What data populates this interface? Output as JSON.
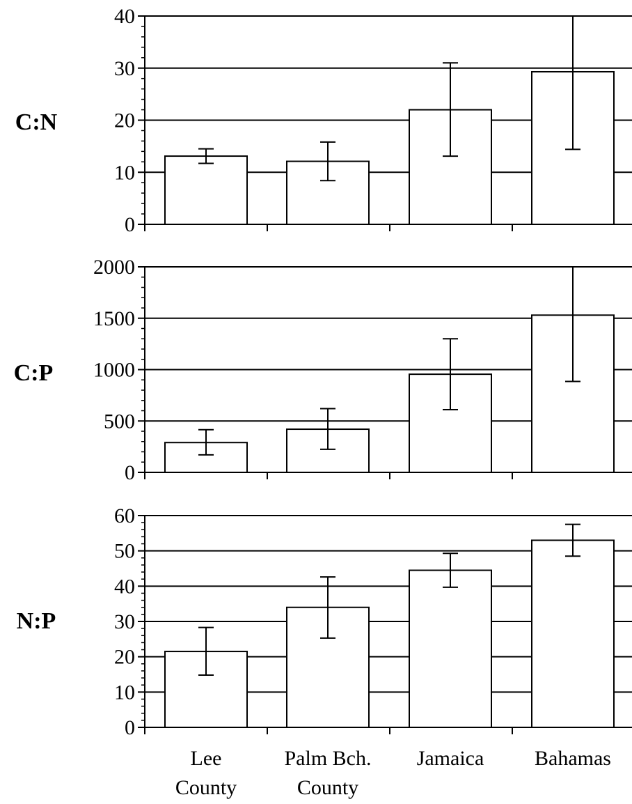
{
  "chart_data": [
    {
      "type": "bar",
      "ylabel": "C:N",
      "categories": [
        "Lee County",
        "Palm Bch. County",
        "Jamaica",
        "Bahamas"
      ],
      "values": [
        13.1,
        12.1,
        22.0,
        29.3
      ],
      "error_low": [
        11.7,
        8.4,
        13.1,
        14.4
      ],
      "error_high": [
        14.5,
        15.8,
        31.0,
        40.0
      ],
      "ylim": [
        0,
        40
      ],
      "yticks": [
        0,
        10,
        20,
        30,
        40
      ],
      "grid": true
    },
    {
      "type": "bar",
      "ylabel": "C:P",
      "categories": [
        "Lee County",
        "Palm Bch. County",
        "Jamaica",
        "Bahamas"
      ],
      "values": [
        290,
        420,
        955,
        1530
      ],
      "error_low": [
        170,
        225,
        610,
        885
      ],
      "error_high": [
        415,
        620,
        1300,
        2000
      ],
      "ylim": [
        0,
        2000
      ],
      "yticks": [
        0,
        500,
        1000,
        1500,
        2000
      ],
      "grid": true
    },
    {
      "type": "bar",
      "ylabel": "N:P",
      "categories": [
        "Lee County",
        "Palm Bch. County",
        "Jamaica",
        "Bahamas"
      ],
      "values": [
        21.5,
        34.0,
        44.5,
        53.0
      ],
      "error_low": [
        14.8,
        25.3,
        39.7,
        48.5
      ],
      "error_high": [
        28.3,
        42.6,
        49.3,
        57.5
      ],
      "ylim": [
        0,
        60
      ],
      "yticks": [
        0,
        10,
        20,
        30,
        40,
        50,
        60
      ],
      "grid": true
    }
  ],
  "x_axis": {
    "category_lines": [
      [
        "Lee",
        "County"
      ],
      [
        "Palm Bch.",
        "County"
      ],
      [
        "Jamaica"
      ],
      [
        "Bahamas"
      ]
    ]
  }
}
